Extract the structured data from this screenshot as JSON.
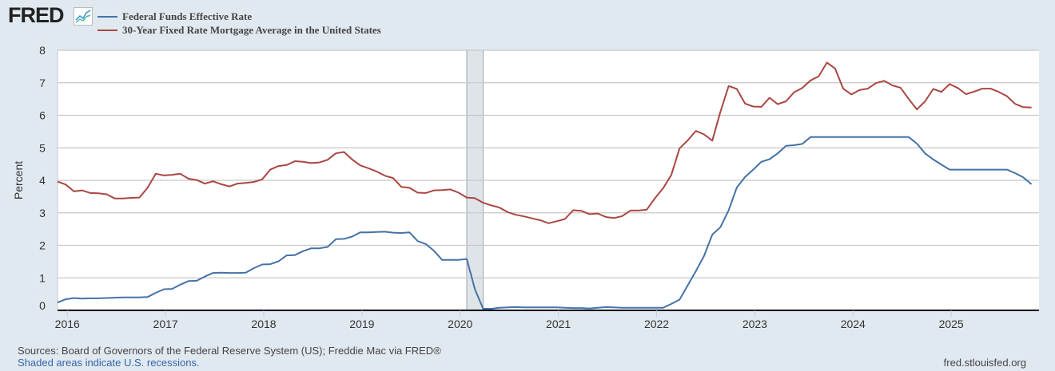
{
  "header": {
    "logo": "FRED"
  },
  "footer": {
    "sources": "Sources: Board of Governors of the Federal Reserve System (US); Freddie Mac via FRED®",
    "recession_note": "Shaded areas indicate U.S. recessions.",
    "site": "fred.stlouisfed.org"
  },
  "colors": {
    "fedfunds": "#4572a7",
    "mortgage": "#aa4643",
    "background": "#e1e9f0",
    "recession": "#dfe4e8"
  },
  "chart_data": {
    "type": "line",
    "title": "",
    "xlabel": "",
    "ylabel": "Percent",
    "ylim": [
      0,
      8
    ],
    "yticks": [
      "0",
      "1",
      "2",
      "3",
      "4",
      "5",
      "6",
      "7",
      "8"
    ],
    "xticks": [
      "2016",
      "2017",
      "2018",
      "2019",
      "2020",
      "2021",
      "2022",
      "2023",
      "2024",
      "2025"
    ],
    "grid": true,
    "legend_position": "top-left",
    "start": "2015-12",
    "frequency": "monthly",
    "recessions": [
      {
        "start": "2020-02",
        "end": "2020-04"
      }
    ],
    "series": [
      {
        "name": "Federal Funds Effective Rate",
        "color_key": "fedfunds",
        "values": [
          0.24,
          0.34,
          0.38,
          0.36,
          0.37,
          0.37,
          0.38,
          0.39,
          0.4,
          0.4,
          0.4,
          0.41,
          0.54,
          0.65,
          0.66,
          0.79,
          0.9,
          0.91,
          1.04,
          1.15,
          1.16,
          1.15,
          1.15,
          1.16,
          1.3,
          1.41,
          1.42,
          1.51,
          1.69,
          1.7,
          1.82,
          1.91,
          1.91,
          1.95,
          2.19,
          2.2,
          2.27,
          2.4,
          2.4,
          2.41,
          2.42,
          2.39,
          2.38,
          2.4,
          2.13,
          2.04,
          1.83,
          1.55,
          1.55,
          1.55,
          1.58,
          0.65,
          0.05,
          0.05,
          0.08,
          0.09,
          0.1,
          0.09,
          0.09,
          0.09,
          0.09,
          0.09,
          0.08,
          0.07,
          0.07,
          0.06,
          0.08,
          0.1,
          0.09,
          0.08,
          0.08,
          0.08,
          0.08,
          0.08,
          0.08,
          0.2,
          0.33,
          0.77,
          1.21,
          1.68,
          2.33,
          2.56,
          3.08,
          3.78,
          4.1,
          4.33,
          4.57,
          4.65,
          4.83,
          5.06,
          5.08,
          5.12,
          5.33,
          5.33,
          5.33,
          5.33,
          5.33,
          5.33,
          5.33,
          5.33,
          5.33,
          5.33,
          5.33,
          5.33,
          5.33,
          5.13,
          4.83,
          4.64,
          4.48,
          4.33,
          4.33,
          4.33,
          4.33,
          4.33,
          4.33,
          4.33,
          4.33,
          4.22,
          4.09,
          3.88
        ]
      },
      {
        "name": "30-Year Fixed Rate Mortgage Average in the United States",
        "color_key": "mortgage",
        "values": [
          3.96,
          3.87,
          3.66,
          3.69,
          3.61,
          3.6,
          3.57,
          3.44,
          3.44,
          3.46,
          3.47,
          3.77,
          4.2,
          4.15,
          4.17,
          4.2,
          4.05,
          4.01,
          3.9,
          3.97,
          3.88,
          3.81,
          3.9,
          3.92,
          3.95,
          4.03,
          4.33,
          4.44,
          4.47,
          4.59,
          4.57,
          4.53,
          4.55,
          4.63,
          4.83,
          4.87,
          4.64,
          4.46,
          4.37,
          4.27,
          4.14,
          4.07,
          3.8,
          3.77,
          3.62,
          3.61,
          3.69,
          3.7,
          3.72,
          3.62,
          3.47,
          3.45,
          3.31,
          3.23,
          3.16,
          3.02,
          2.94,
          2.89,
          2.83,
          2.77,
          2.68,
          2.74,
          2.81,
          3.08,
          3.06,
          2.96,
          2.98,
          2.87,
          2.84,
          2.9,
          3.07,
          3.07,
          3.1,
          3.45,
          3.76,
          4.17,
          4.98,
          5.23,
          5.52,
          5.41,
          5.22,
          6.11,
          6.9,
          6.81,
          6.36,
          6.27,
          6.26,
          6.54,
          6.34,
          6.43,
          6.71,
          6.84,
          7.07,
          7.2,
          7.62,
          7.44,
          6.82,
          6.64,
          6.78,
          6.82,
          6.99,
          7.06,
          6.92,
          6.85,
          6.5,
          6.18,
          6.43,
          6.81,
          6.72,
          6.96,
          6.84,
          6.65,
          6.73,
          6.82,
          6.82,
          6.72,
          6.59,
          6.35,
          6.25,
          6.24
        ]
      }
    ]
  }
}
